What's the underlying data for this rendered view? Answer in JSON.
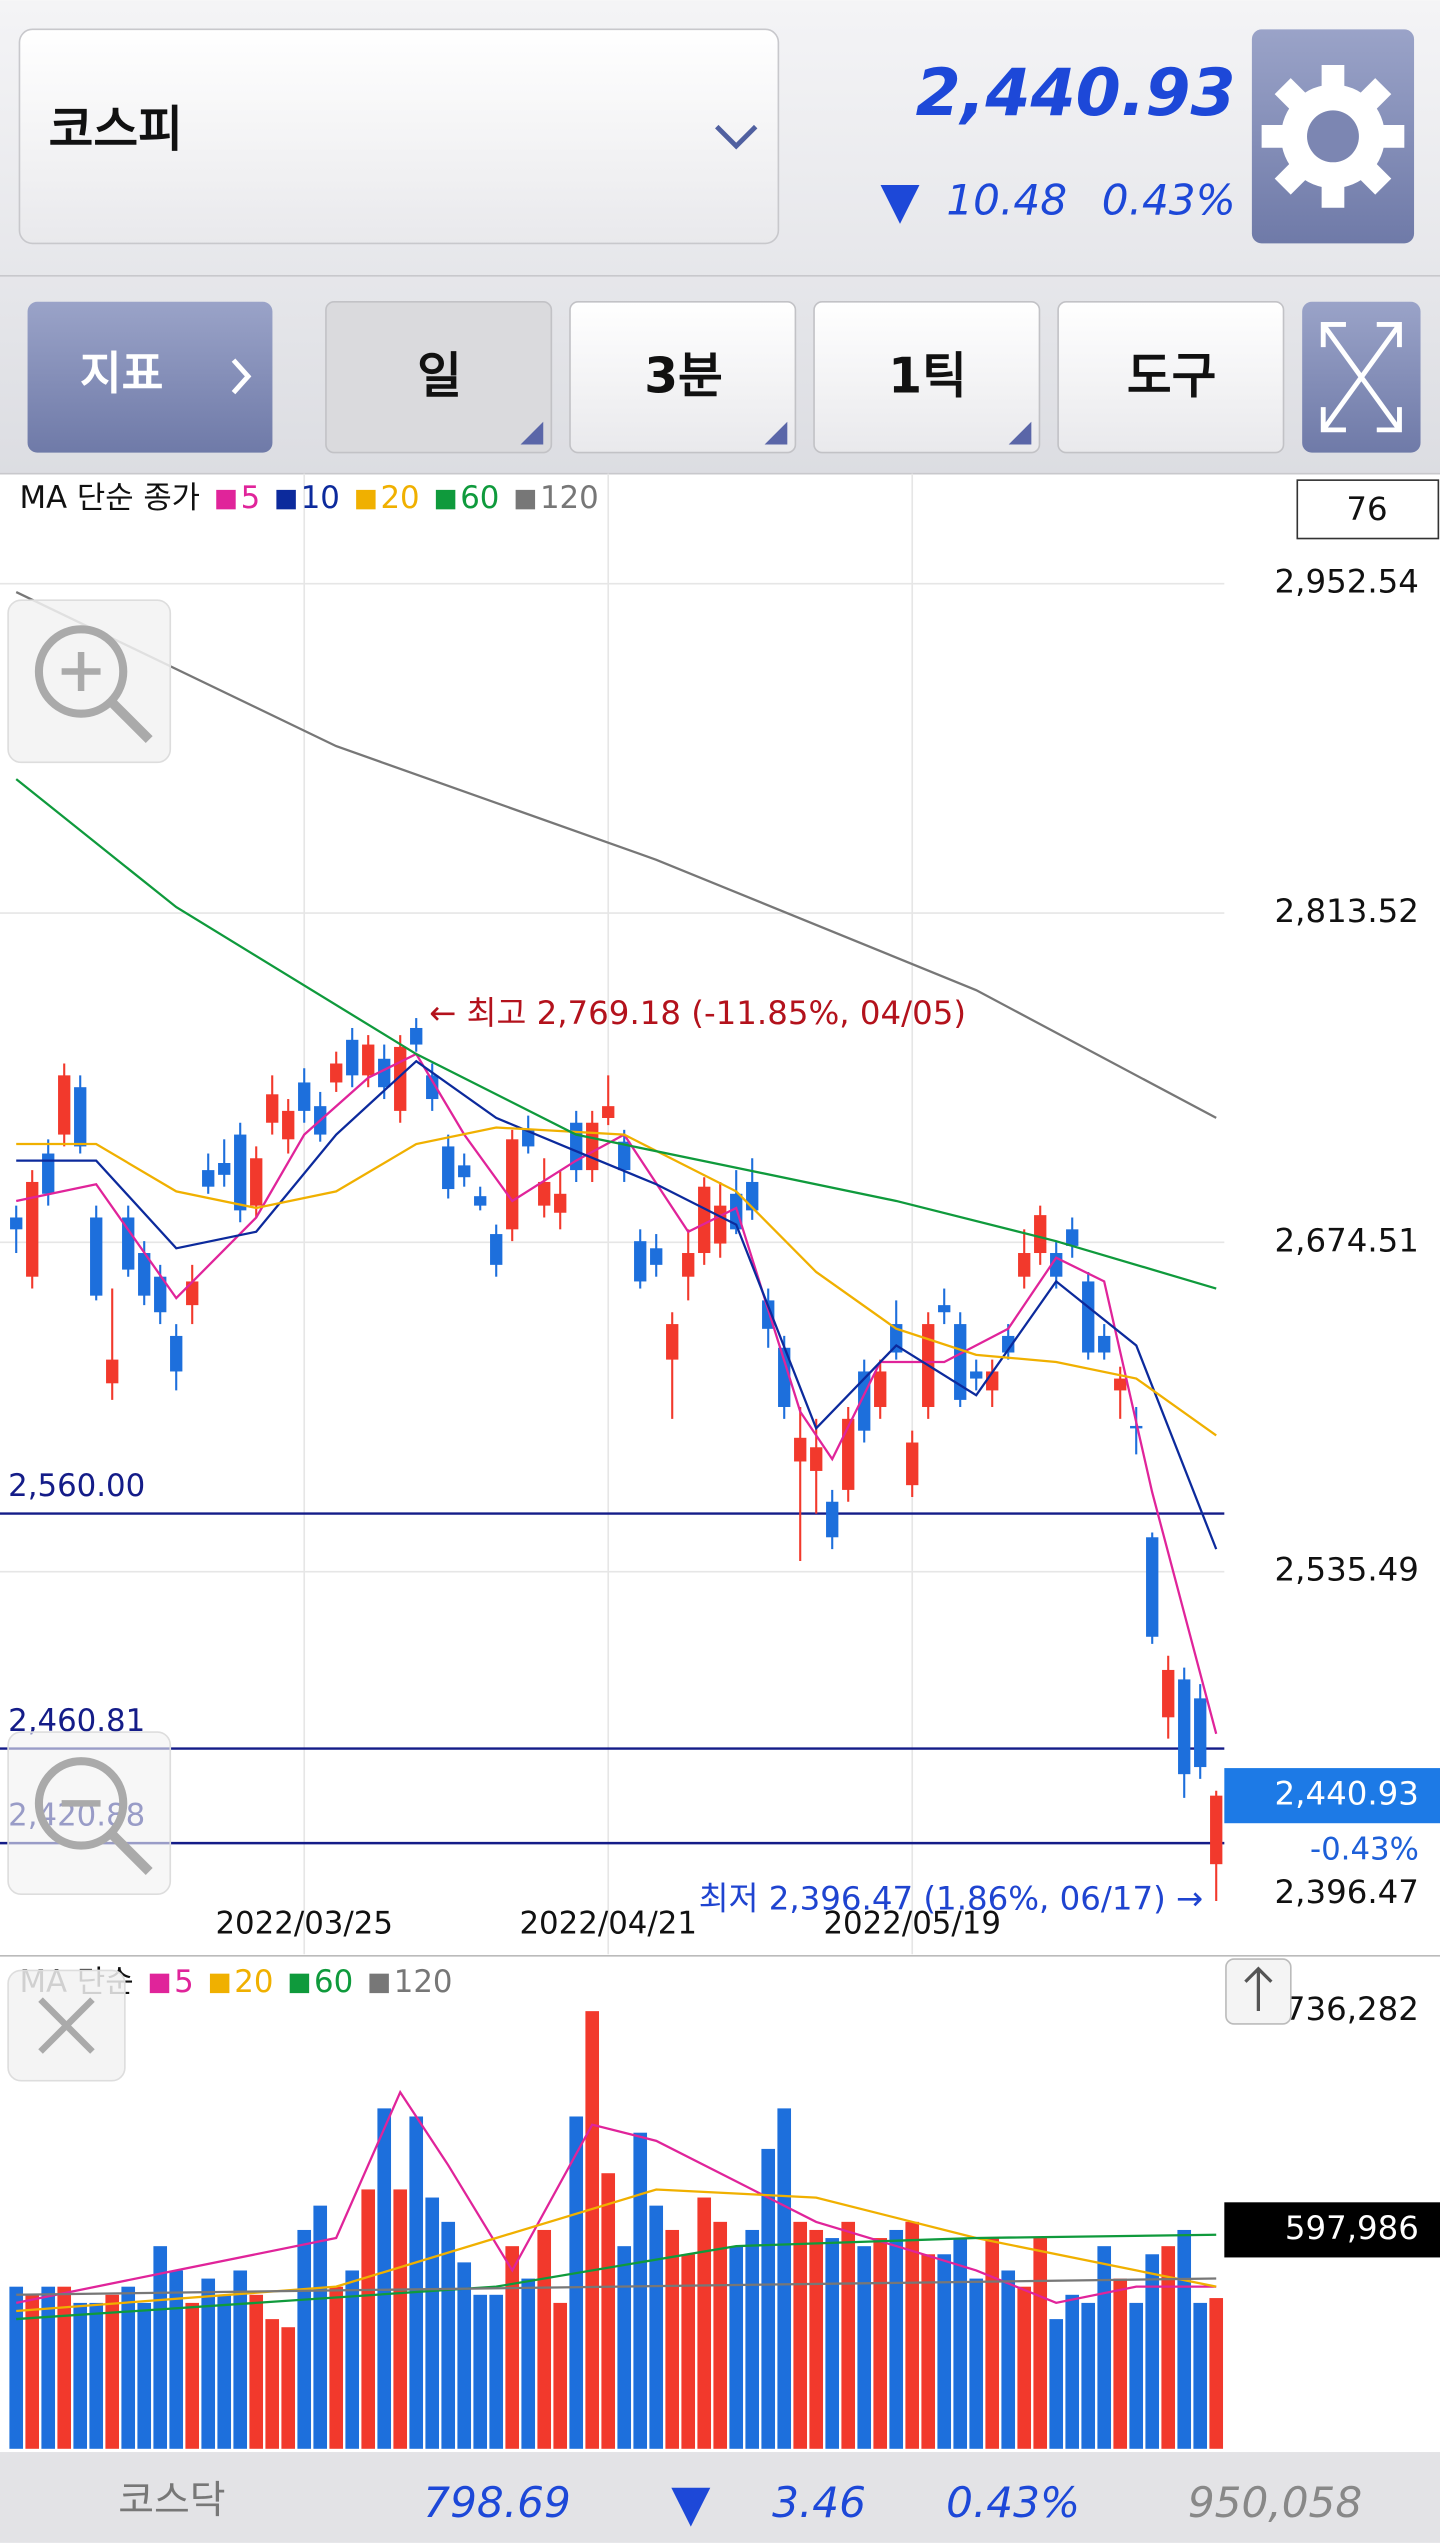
{
  "header": {
    "market": "코스피",
    "price": "2,440.93",
    "change": "10.48",
    "change_pct": "0.43%"
  },
  "toolbar": {
    "indicator": "지표",
    "tabs": [
      "일",
      "3분",
      "1틱",
      "도구"
    ]
  },
  "chart_data": [
    {
      "type": "candlestick",
      "title": "MA 단순 종가",
      "visible_count": "76",
      "categories": [
        null,
        null,
        null,
        null,
        null,
        null,
        null,
        null,
        null,
        null,
        null,
        null,
        null,
        null,
        null,
        null,
        null,
        null,
        "2022/03/25",
        null,
        null,
        null,
        null,
        null,
        null,
        null,
        null,
        null,
        null,
        null,
        null,
        null,
        null,
        null,
        null,
        null,
        null,
        "2022/04/21",
        null,
        null,
        null,
        null,
        null,
        null,
        null,
        null,
        null,
        null,
        null,
        null,
        null,
        null,
        null,
        null,
        null,
        null,
        "2022/05/19",
        null,
        null,
        null,
        null,
        null,
        null,
        null,
        null,
        null,
        null,
        null,
        null,
        null,
        null,
        null,
        null,
        null,
        null,
        null
      ],
      "candles": [
        [
          2685,
          2690,
          2670,
          2680
        ],
        [
          2660,
          2705,
          2655,
          2700
        ],
        [
          2712,
          2718,
          2690,
          2695
        ],
        [
          2720,
          2750,
          2715,
          2745
        ],
        [
          2740,
          2745,
          2712,
          2715
        ],
        [
          2685,
          2690,
          2650,
          2652
        ],
        [
          2615,
          2655,
          2608,
          2625
        ],
        [
          2685,
          2690,
          2660,
          2663
        ],
        [
          2670,
          2675,
          2648,
          2652
        ],
        [
          2660,
          2665,
          2640,
          2645
        ],
        [
          2635,
          2640,
          2612,
          2620
        ],
        [
          2648,
          2665,
          2640,
          2658
        ],
        [
          2705,
          2712,
          2695,
          2698
        ],
        [
          2708,
          2718,
          2698,
          2703
        ],
        [
          2720,
          2725,
          2683,
          2688
        ],
        [
          2690,
          2715,
          2685,
          2710
        ],
        [
          2725,
          2745,
          2720,
          2737
        ],
        [
          2718,
          2735,
          2712,
          2730
        ],
        [
          2742,
          2748,
          2725,
          2730
        ],
        [
          2732,
          2738,
          2717,
          2720
        ],
        [
          2742,
          2755,
          2738,
          2750
        ],
        [
          2760,
          2765,
          2740,
          2745
        ],
        [
          2745,
          2762,
          2740,
          2758
        ],
        [
          2752,
          2758,
          2735,
          2740
        ],
        [
          2730,
          2762,
          2725,
          2757
        ],
        [
          2765,
          2769.18,
          2755,
          2758
        ],
        [
          2745,
          2750,
          2730,
          2735
        ],
        [
          2715,
          2720,
          2693,
          2697
        ],
        [
          2707,
          2712,
          2698,
          2702
        ],
        [
          2694,
          2698,
          2688,
          2690
        ],
        [
          2678,
          2682,
          2660,
          2665
        ],
        [
          2680,
          2722,
          2675,
          2718
        ],
        [
          2722,
          2728,
          2712,
          2715
        ],
        [
          2690,
          2710,
          2685,
          2700
        ],
        [
          2687,
          2705,
          2680,
          2695
        ],
        [
          2725,
          2730,
          2700,
          2705
        ],
        [
          2705,
          2730,
          2700,
          2725
        ],
        [
          2727,
          2745,
          2724,
          2732
        ],
        [
          2717,
          2722,
          2700,
          2705
        ],
        [
          2675,
          2680,
          2655,
          2658
        ],
        [
          2672,
          2678,
          2660,
          2665
        ],
        [
          2625,
          2645,
          2600,
          2640
        ],
        [
          2660,
          2680,
          2650,
          2670
        ],
        [
          2670,
          2702,
          2665,
          2698
        ],
        [
          2674,
          2700,
          2668,
          2690
        ],
        [
          2695,
          2705,
          2678,
          2680
        ],
        [
          2700,
          2710,
          2684,
          2688
        ],
        [
          2650,
          2655,
          2630,
          2638
        ],
        [
          2630,
          2635,
          2600,
          2605
        ],
        [
          2582,
          2605,
          2540,
          2592
        ],
        [
          2578,
          2600,
          2560,
          2588
        ],
        [
          2565,
          2570,
          2545,
          2550
        ],
        [
          2570,
          2605,
          2565,
          2600
        ],
        [
          2620,
          2625,
          2590,
          2595
        ],
        [
          2605,
          2625,
          2600,
          2620
        ],
        [
          2640,
          2650,
          2625,
          2628
        ],
        [
          2572,
          2595,
          2567,
          2590
        ],
        [
          2605,
          2645,
          2600,
          2640
        ],
        [
          2648,
          2655,
          2640,
          2645
        ],
        [
          2640,
          2645,
          2605,
          2608
        ],
        [
          2620,
          2625,
          2612,
          2617
        ],
        [
          2612,
          2625,
          2605,
          2620
        ],
        [
          2635,
          2640,
          2625,
          2628
        ],
        [
          2660,
          2680,
          2655,
          2670
        ],
        [
          2670,
          2690,
          2665,
          2686
        ],
        [
          2670,
          2675,
          2655,
          2660
        ],
        [
          2680,
          2685,
          2668,
          2673
        ],
        [
          2658,
          2662,
          2625,
          2628
        ],
        [
          2635,
          2640,
          2625,
          2628
        ],
        [
          2612,
          2622,
          2600,
          2617
        ],
        [
          2597,
          2605,
          2585,
          2596
        ],
        [
          2550,
          2552,
          2505,
          2508
        ],
        [
          2474,
          2500,
          2465,
          2494
        ],
        [
          2490,
          2495,
          2440,
          2450
        ],
        [
          2482,
          2488,
          2448,
          2453
        ],
        [
          2412,
          2443,
          2396.47,
          2440.93
        ]
      ],
      "up_color": "#f2392c",
      "down_color": "#1d6fdc",
      "ylim": [
        2374,
        2999
      ],
      "yticks": [
        {
          "value": 2952.54,
          "label": "2,952.54"
        },
        {
          "value": 2813.52,
          "label": "2,813.52"
        },
        {
          "value": 2674.51,
          "label": "2,674.51"
        },
        {
          "value": 2535.49,
          "label": "2,535.49"
        }
      ],
      "grid": true,
      "levels": [
        {
          "value": 2560,
          "label": "2,560.00"
        },
        {
          "value": 2460.81,
          "label": "2,460.81"
        },
        {
          "value": 2420.88,
          "label": "2,420.88"
        }
      ],
      "high_annotation": "← 최고 2,769.18 (-11.85%, 04/05)",
      "low_annotation": "최저 2,396.47 (1.86%, 06/17) →",
      "price_label": "2,440.93",
      "change_label": "-0.43%",
      "low_label": "2,396.47",
      "series": [
        {
          "name": "5",
          "color": "#e0249a",
          "x": [
            0,
            5,
            10,
            15,
            18,
            22,
            25,
            28,
            31,
            35,
            38,
            42,
            45,
            49,
            51,
            54,
            58,
            62,
            65,
            68,
            71,
            75
          ],
          "values": [
            2692,
            2699,
            2651,
            2685,
            2720,
            2744,
            2754,
            2720,
            2692,
            2709,
            2720,
            2679,
            2689,
            2603,
            2583,
            2624,
            2624,
            2638,
            2668,
            2658,
            2569,
            2467
          ]
        },
        {
          "name": "10",
          "color": "#0c2a9c",
          "x": [
            0,
            5,
            10,
            15,
            20,
            25,
            30,
            35,
            40,
            45,
            50,
            55,
            60,
            65,
            70,
            75
          ],
          "values": [
            2709,
            2709,
            2672,
            2679,
            2720,
            2751,
            2727,
            2713,
            2699,
            2682,
            2596,
            2631,
            2610,
            2658,
            2631,
            2545
          ]
        },
        {
          "name": "20",
          "color": "#f0b000",
          "x": [
            0,
            5,
            10,
            15,
            20,
            25,
            30,
            38,
            45,
            50,
            55,
            60,
            65,
            70,
            75
          ],
          "values": [
            2716,
            2716,
            2696,
            2689,
            2696,
            2716,
            2723,
            2720,
            2696,
            2662,
            2638,
            2627,
            2624,
            2617,
            2593
          ]
        },
        {
          "name": "60",
          "color": "#0f9a3c",
          "x": [
            0,
            10,
            25,
            35,
            45,
            55,
            65,
            75
          ],
          "values": [
            2870,
            2816,
            2754,
            2720,
            2706,
            2692,
            2675,
            2655
          ]
        },
        {
          "name": "120",
          "color": "#777777",
          "x": [
            0,
            20,
            40,
            60,
            75
          ],
          "values": [
            2949,
            2884,
            2836,
            2781,
            2727
          ]
        }
      ]
    },
    {
      "type": "bar",
      "title": "MA 단순",
      "current_label": "597,986",
      "values": [
        643100,
        610945,
        643100,
        643100,
        578790,
        578790,
        610945,
        643100,
        578790,
        803875,
        707410,
        578790,
        675255,
        610945,
        707410,
        610945,
        514480,
        482325,
        868185,
        964650,
        643100,
        707410,
        1028960,
        1350510,
        1028960,
        1318355,
        996805,
        900340,
        739565,
        610945,
        610945,
        803875,
        675255,
        868185,
        578790,
        1318355,
        1736282,
        1093270,
        803875,
        1254045,
        964650,
        868185,
        771720,
        996805,
        900340,
        803875,
        868185,
        1189735,
        1350510,
        900340,
        868185,
        836030,
        900340,
        803875,
        836030,
        868185,
        900340,
        771720,
        771720,
        836030,
        675255,
        836030,
        707410,
        643100,
        836030,
        514480,
        610945,
        578790,
        803875,
        675255,
        578790,
        771720,
        803875,
        868185,
        578790,
        597986
      ],
      "ylim": [
        0,
        1930000
      ],
      "yticks": [
        {
          "value": 1736282,
          "label": "1,736,282"
        }
      ],
      "series": [
        {
          "name": "5",
          "color": "#e0249a",
          "x": [
            0,
            10,
            20,
            24,
            27,
            31,
            36,
            40,
            45,
            50,
            55,
            60,
            65,
            70,
            75
          ],
          "values": [
            578790,
            707410,
            836030,
            1414820,
            1125425,
            707410,
            1286200,
            1221890,
            1061115,
            900340,
            803875,
            707410,
            578790,
            643100,
            643100
          ]
        },
        {
          "name": "20",
          "color": "#f0b000",
          "x": [
            0,
            20,
            30,
            40,
            50,
            60,
            70,
            75
          ],
          "values": [
            546635,
            643100,
            836030,
            1028960,
            996805,
            836030,
            707410,
            643100
          ]
        },
        {
          "name": "60",
          "color": "#0f9a3c",
          "x": [
            0,
            30,
            45,
            60,
            75
          ],
          "values": [
            514480,
            643100,
            803875,
            836030,
            848892
          ]
        },
        {
          "name": "120",
          "color": "#777777",
          "x": [
            0,
            75
          ],
          "values": [
            610945,
            675255
          ]
        }
      ]
    }
  ],
  "footer": {
    "market": "코스닥",
    "price": "798.69",
    "change": "3.46",
    "change_pct": "0.43%",
    "volume": "950,058"
  }
}
